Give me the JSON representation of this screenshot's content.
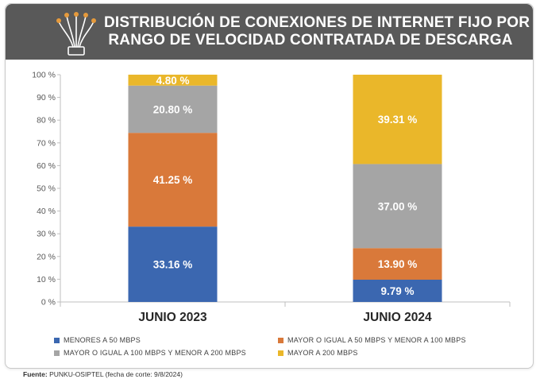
{
  "header": {
    "title_line1": "DISTRIBUCIÓN DE CONEXIONES DE INTERNET FIJO POR",
    "title_line2": "RANGO DE VELOCIDAD CONTRATADA DE DESCARGA",
    "icon": "fiber-optic-icon"
  },
  "chart_data": {
    "type": "bar",
    "stacked": true,
    "title": "DISTRIBUCIÓN DE CONEXIONES DE INTERNET FIJO POR RANGO DE VELOCIDAD CONTRATADA DE DESCARGA",
    "categories": [
      "JUNIO 2023",
      "JUNIO 2024"
    ],
    "series": [
      {
        "name": "MENORES A 50 MBPS",
        "color": "#3b67b0",
        "values": [
          33.16,
          9.79
        ],
        "labels": [
          "33.16 %",
          "9.79 %"
        ]
      },
      {
        "name": "MAYOR O IGUAL A 50 MBPS Y MENOR A 100 MBPS",
        "color": "#d9793a",
        "values": [
          41.25,
          13.9
        ],
        "labels": [
          "41.25 %",
          "13.90 %"
        ]
      },
      {
        "name": "MAYOR O IGUAL A 100 MBPS Y MENOR A 200 MBPS",
        "color": "#a5a5a5",
        "values": [
          20.8,
          37.0
        ],
        "labels": [
          "20.80 %",
          "37.00 %"
        ]
      },
      {
        "name": "MAYOR A 200 MBPS",
        "color": "#eab72a",
        "values": [
          4.8,
          39.31
        ],
        "labels": [
          "4.80 %",
          "39.31 %"
        ]
      }
    ],
    "ylim": [
      0,
      100
    ],
    "yticks": [
      0,
      10,
      20,
      30,
      40,
      50,
      60,
      70,
      80,
      90,
      100
    ],
    "ytick_labels": [
      "0 %",
      "10 %",
      "20 %",
      "30 %",
      "40 %",
      "50 %",
      "60 %",
      "70 %",
      "80 %",
      "90 %",
      "100 %"
    ],
    "xlabel": "",
    "ylabel": "",
    "grid": false,
    "legend_position": "bottom"
  },
  "source": {
    "label": "Fuente:",
    "text": "PUNKU-OSIPTEL (fecha de corte: 9/8/2024)"
  }
}
